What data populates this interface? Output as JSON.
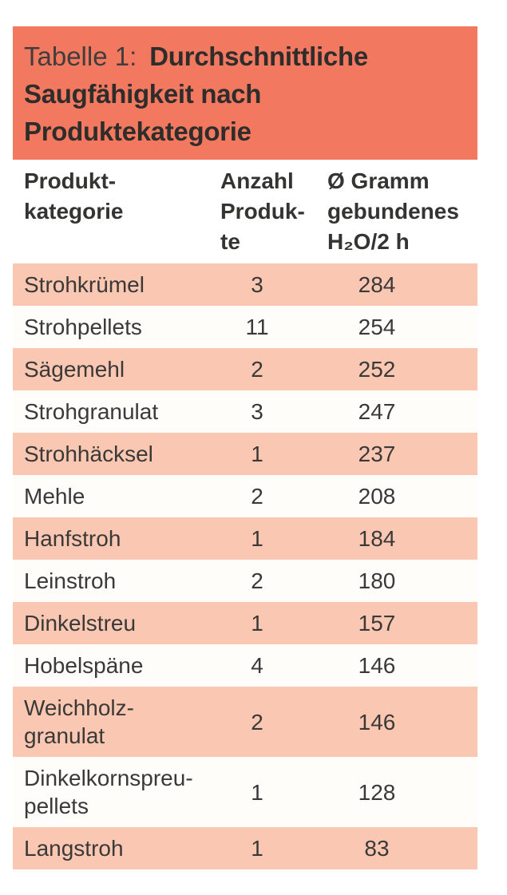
{
  "colors": {
    "title_background": "#F2795F",
    "stripe_row_background": "#FAC8B2",
    "plain_row_background": "#FFFDFA",
    "body_text": "#3A3938"
  },
  "title": {
    "label": "Tabelle 1:",
    "heading": "Durchschnittliche Saugfähigkeit nach Produktekategorie"
  },
  "table": {
    "columns": [
      {
        "id": "category",
        "text": "Produkt-\nkategorie"
      },
      {
        "id": "count",
        "text": "Anzahl\nProduk-\nte"
      },
      {
        "id": "value",
        "text": "Ø Gramm\ngebundenes\nH₂O/2 h"
      }
    ],
    "rows": [
      {
        "category": "Strohkrümel",
        "count": "3",
        "value": "284"
      },
      {
        "category": "Strohpellets",
        "count": "11",
        "value": "254"
      },
      {
        "category": "Sägemehl",
        "count": "2",
        "value": "252"
      },
      {
        "category": "Strohgranulat",
        "count": "3",
        "value": "247"
      },
      {
        "category": "Strohhäcksel",
        "count": "1",
        "value": "237"
      },
      {
        "category": "Mehle",
        "count": "2",
        "value": "208"
      },
      {
        "category": "Hanfstroh",
        "count": "1",
        "value": "184"
      },
      {
        "category": "Leinstroh",
        "count": "2",
        "value": "180"
      },
      {
        "category": "Dinkelstreu",
        "count": "1",
        "value": "157"
      },
      {
        "category": "Hobelspäne",
        "count": "4",
        "value": "146"
      },
      {
        "category": "Weichholz-\ngranulat",
        "count": "2",
        "value": "146"
      },
      {
        "category": "Dinkelkornspreu-\npellets",
        "count": "1",
        "value": "128"
      },
      {
        "category": "Langstroh",
        "count": "1",
        "value": "83"
      }
    ]
  }
}
